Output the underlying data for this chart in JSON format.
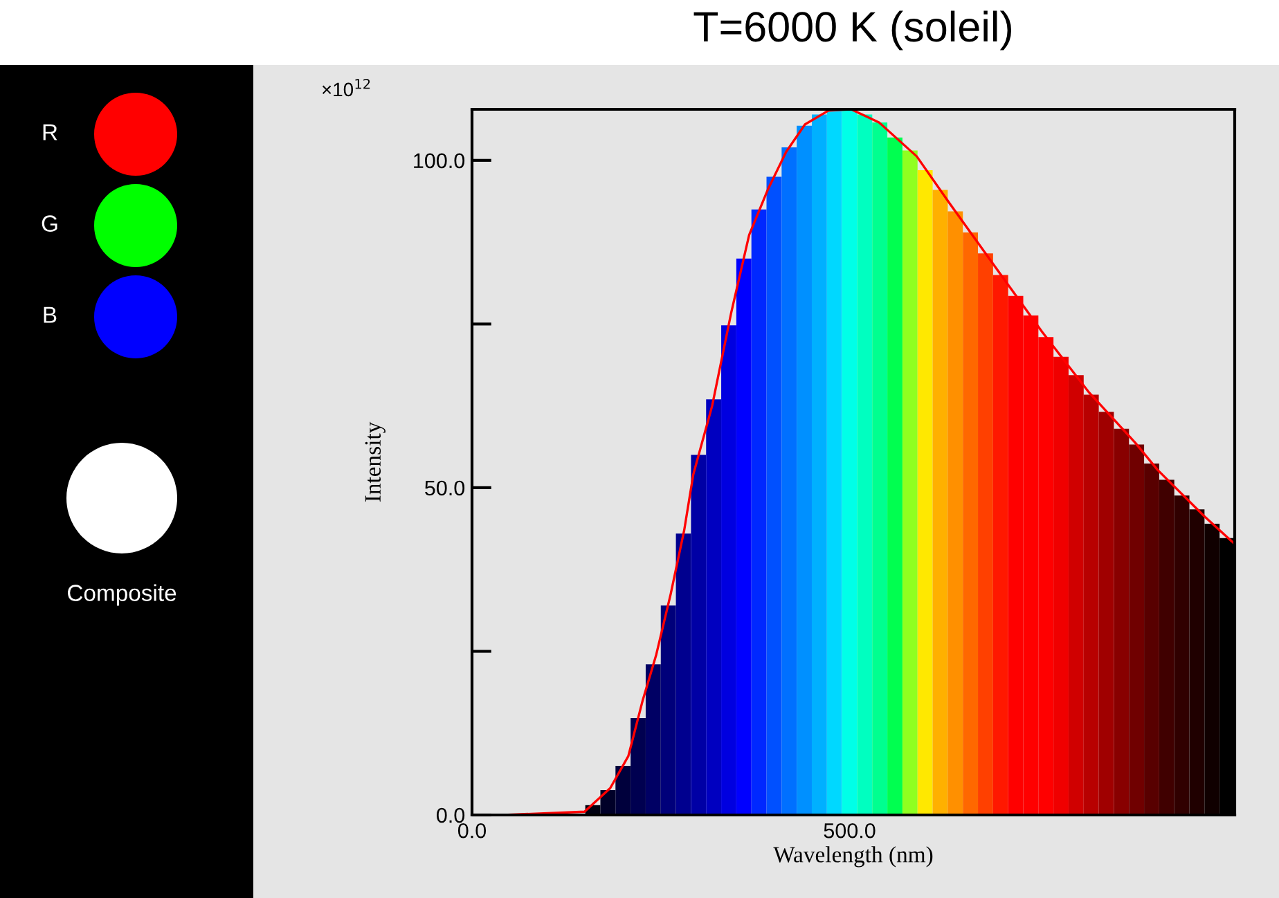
{
  "chart_data": [
    {
      "type": "other",
      "annotations": [
        "R",
        "G",
        "B",
        "Composite"
      ],
      "colors": [
        "#ff0000",
        "#00ff00",
        "#0000ff",
        "#ffffff"
      ]
    },
    {
      "type": "histogram",
      "title": "T=6000 K (soleil)",
      "xlabel": "Wavelength (nm)",
      "ylabel": "Intensity",
      "annotations": [
        "×10$^{12}$"
      ],
      "bins": [
        150,
        170,
        190,
        210,
        230,
        250,
        270,
        290,
        310,
        330,
        350,
        370,
        390,
        410,
        430,
        450,
        470,
        490,
        510,
        530,
        550,
        570,
        590,
        610,
        630,
        650,
        670,
        690,
        710,
        730,
        750,
        770,
        790,
        810,
        830,
        850,
        870,
        890,
        910,
        930,
        950,
        970,
        990,
        1010
      ],
      "values": [
        1.5,
        3.8,
        7.5,
        14.8,
        23,
        32,
        43,
        55,
        63.5,
        74.8,
        85,
        92.5,
        97.5,
        102,
        105.3,
        107,
        107.7,
        107.8,
        107,
        105.8,
        103.5,
        101.5,
        98.5,
        95.5,
        92.2,
        89,
        85.8,
        82.5,
        79.3,
        76.3,
        73,
        70,
        67.2,
        64.2,
        61.6,
        59,
        56.6,
        53.7,
        51.2,
        48.8,
        46.7,
        44.5,
        42.3
      ],
      "colors": [
        "#000010",
        "#000028",
        "#00003c",
        "#000050",
        "#000064",
        "#00007a",
        "#00008f",
        "#0000a5",
        "#0000c0",
        "#0000e0",
        "#0000ff",
        "#0028ff",
        "#0050ff",
        "#0070ff",
        "#0090ff",
        "#00b0ff",
        "#00d8ff",
        "#00ffe8",
        "#00ffc0",
        "#00ff90",
        "#00ff50",
        "#90ff20",
        "#ffe800",
        "#ffb000",
        "#ff9000",
        "#ff6800",
        "#ff4000",
        "#ff1800",
        "#ff0000",
        "#ff0000",
        "#ff0000",
        "#f00000",
        "#d00000",
        "#b80000",
        "#a00000",
        "#880000",
        "#700000",
        "#580000",
        "#400000",
        "#300000",
        "#200000",
        "#100000",
        "#000000"
      ],
      "series": [
        {
          "type": "line",
          "color": "#ff0000",
          "x": [
            42,
            149,
            183,
            207,
            226,
            244,
            263,
            281,
            293,
            318,
            343,
            367,
            392,
            416,
            441,
            472,
            502,
            539,
            589,
            632,
            693,
            755,
            816,
            878,
            908,
            970,
            1010
          ],
          "values": [
            0,
            0.5,
            4.1,
            9.0,
            17.5,
            24.5,
            33.7,
            43.5,
            52,
            62.5,
            76.6,
            88.6,
            95.6,
            101.3,
            105.5,
            107.6,
            107.8,
            105.8,
            100.6,
            93.5,
            83.7,
            73.8,
            64.7,
            56.9,
            52.7,
            45.6,
            41.4
          ]
        }
      ],
      "xlim": [
        0,
        1010
      ],
      "xticks": [
        {
          "value": 0,
          "label": "0.0"
        },
        {
          "value": 500,
          "label": "500.0"
        }
      ],
      "ylim": [
        0,
        107.8
      ],
      "yticks": [
        {
          "value": 0,
          "label": "0.0"
        },
        {
          "value": 25,
          "label": null
        },
        {
          "value": 50,
          "label": "50.0"
        },
        {
          "value": 75,
          "label": null
        },
        {
          "value": 100,
          "label": "100.0"
        }
      ],
      "grid": false,
      "legend": false
    }
  ]
}
